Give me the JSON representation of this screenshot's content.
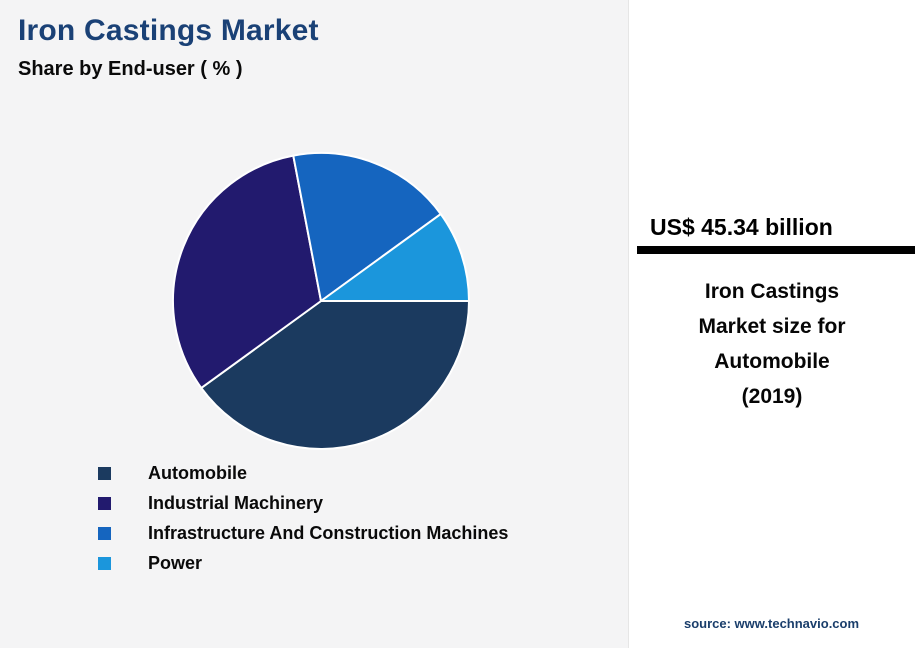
{
  "header": {
    "title": "Iron Castings Market",
    "subtitle": "Share by End-user ( % )"
  },
  "chart_data": {
    "type": "pie",
    "title": "Iron Castings Market — Share by End-user (%)",
    "categories": [
      "Automobile",
      "Industrial Machinery",
      "Infrastructure And Construction Machines",
      "Power"
    ],
    "values": [
      40,
      32,
      18,
      10
    ],
    "unit": "%",
    "colors": [
      "#1b3a5f",
      "#221a6e",
      "#1565bf",
      "#1b96dc"
    ],
    "start_angle_clockwise_from_top_deg": 90,
    "slice_border_color": "#ffffff",
    "legend_position": "bottom-left",
    "grid": false
  },
  "sidebar": {
    "headline": "US$ 45.34 billion",
    "description_lines": [
      "Iron Castings",
      "Market size for",
      "Automobile",
      "(2019)"
    ],
    "source": "source: www.technavio.com"
  },
  "theme": {
    "title_color": "#1a4176",
    "left_background": "#f4f4f5",
    "panel_background": "#ffffff",
    "rule_color": "#000000"
  }
}
